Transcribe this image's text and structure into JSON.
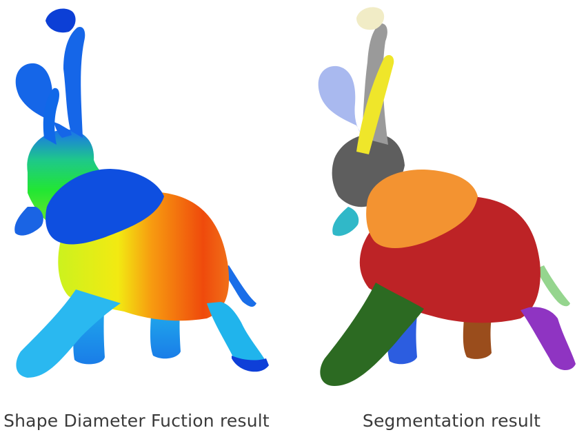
{
  "figures": [
    {
      "caption": "Shape Diameter Fuction result",
      "colors": {
        "blue": "#0f4fe0",
        "light_blue": "#1890ee",
        "cyan": "#20b8ec",
        "green": "#22e633",
        "yellow_green": "#b6f21c",
        "yellow": "#f2ea12",
        "orange": "#f79a10",
        "red_orange": "#f54a0c",
        "red": "#e7280a"
      }
    },
    {
      "caption": "Segmentation result",
      "colors": {
        "tusk_tip": "#f1ecc6",
        "trunk_gray": "#9a9a9a",
        "head": "#5e5e5e",
        "trunk_lavender": "#a9b9ef",
        "tusk_yellow": "#efe62a",
        "ear_orange": "#f39331",
        "body_red": "#bd2326",
        "front_leg_green": "#2c6a22",
        "leg_blue": "#2c5de0",
        "leg_brown": "#9a4d1c",
        "leg_purple": "#8f34c2",
        "tail_mint": "#95d58e",
        "trunk_teal": "#30b8c8"
      }
    }
  ]
}
